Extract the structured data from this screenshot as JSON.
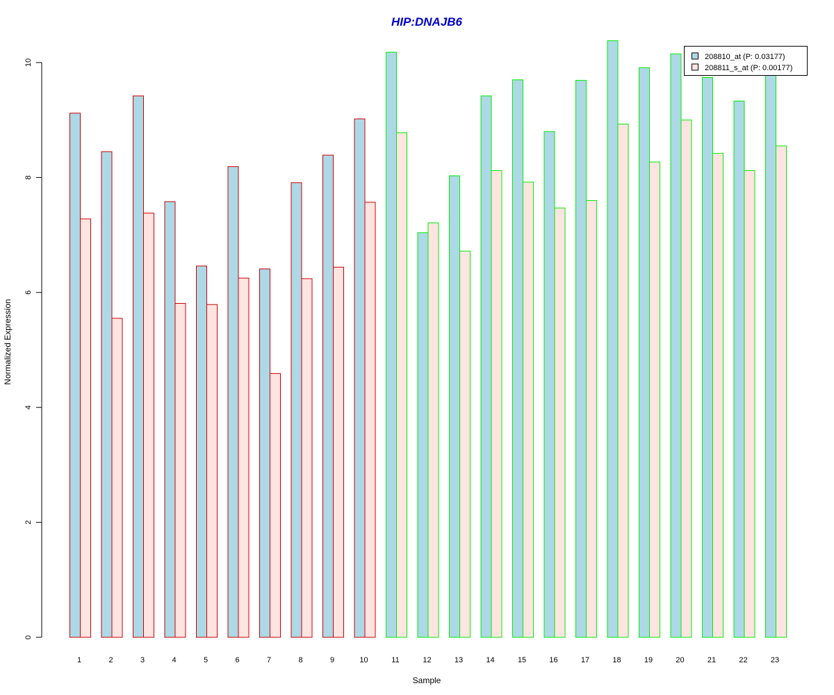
{
  "chart_data": {
    "type": "bar",
    "title": "HIP:DNAJB6",
    "xlabel": "Sample",
    "ylabel": "Normalized Expression",
    "ylim": [
      0,
      10.5
    ],
    "yticks": [
      0,
      2,
      4,
      6,
      8,
      10
    ],
    "categories": [
      "1",
      "2",
      "3",
      "4",
      "5",
      "6",
      "7",
      "8",
      "9",
      "10",
      "11",
      "12",
      "13",
      "14",
      "15",
      "16",
      "17",
      "18",
      "19",
      "20",
      "21",
      "22",
      "23"
    ],
    "series": [
      {
        "name": "208810_at (P: 0.03177)",
        "values": [
          9.12,
          8.45,
          9.42,
          7.58,
          6.46,
          8.19,
          6.41,
          7.91,
          8.39,
          9.02,
          10.18,
          7.04,
          8.03,
          9.42,
          9.7,
          8.8,
          9.69,
          10.38,
          9.91,
          10.15,
          9.74,
          9.33,
          9.8
        ]
      },
      {
        "name": "208811_s_at (P: 0.00177)",
        "values": [
          7.28,
          5.55,
          7.38,
          5.81,
          5.79,
          6.25,
          4.59,
          6.24,
          6.44,
          7.57,
          8.78,
          7.21,
          6.72,
          8.12,
          7.92,
          7.47,
          7.6,
          8.93,
          8.27,
          9.0,
          8.42,
          8.12,
          8.55
        ]
      }
    ],
    "groups": [
      {
        "samples": [
          "1",
          "2",
          "3",
          "4",
          "5",
          "6",
          "7",
          "8",
          "9",
          "10"
        ],
        "border_color": "#cc0000"
      },
      {
        "samples": [
          "11",
          "12",
          "13",
          "14",
          "15",
          "16",
          "17",
          "18",
          "19",
          "20",
          "21",
          "22",
          "23"
        ],
        "border_color": "#00ee00"
      }
    ],
    "colors": {
      "series1_fill": "#add8e6",
      "series2_fill": "#ffe4e1",
      "title": "#0000cc",
      "axis": "#000000"
    },
    "legend_position": "top-right",
    "grid": false
  }
}
